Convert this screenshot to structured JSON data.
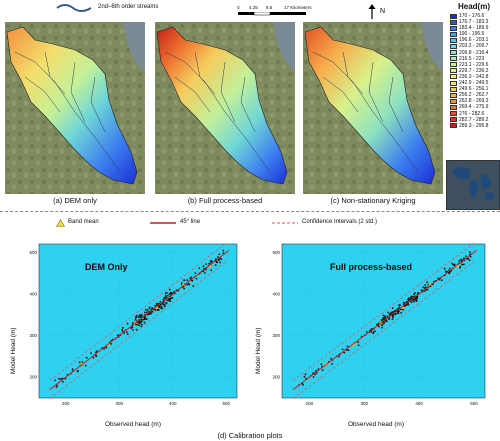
{
  "top": {
    "stream_legend": "2nd–6th order streams",
    "scale_bar": {
      "ticks": [
        "0",
        "4.25",
        "8.5",
        "17 Kilometers"
      ]
    },
    "north": "N",
    "legend": {
      "title": "Head(m)",
      "items": [
        {
          "label": "170 - 176.6",
          "color": "#1a2fd4"
        },
        {
          "label": "176.7 - 183.3",
          "color": "#2f52e3"
        },
        {
          "label": "183.4 - 189.9",
          "color": "#3c7ff0"
        },
        {
          "label": "190 - 196.5",
          "color": "#47a4f3"
        },
        {
          "label": "196.6 - 203.1",
          "color": "#55c3ec"
        },
        {
          "label": "203.2 - 209.7",
          "color": "#6fd6d7"
        },
        {
          "label": "209.8 - 216.4",
          "color": "#8de2c0"
        },
        {
          "label": "216.5 - 223",
          "color": "#a8ebab"
        },
        {
          "label": "223.1 - 229.6",
          "color": "#c2f199"
        },
        {
          "label": "229.7 - 236.2",
          "color": "#d8f28a"
        },
        {
          "label": "236.3 - 242.8",
          "color": "#e9ee7b"
        },
        {
          "label": "242.9 - 249.5",
          "color": "#f3df6c"
        },
        {
          "label": "249.6 - 256.1",
          "color": "#f6ca5b"
        },
        {
          "label": "256.2 - 262.7",
          "color": "#f6ae4b"
        },
        {
          "label": "262.8 - 269.3",
          "color": "#f28f3c"
        },
        {
          "label": "269.4 - 275.9",
          "color": "#ec6f30"
        },
        {
          "label": "276 - 282.6",
          "color": "#e25226"
        },
        {
          "label": "282.7 - 289.2",
          "color": "#d6361d"
        },
        {
          "label": "289.3 - 295.8",
          "color": "#c41e16"
        }
      ]
    },
    "maps": [
      {
        "caption": "(a) DEM only"
      },
      {
        "caption": "(b) Full process-based"
      },
      {
        "caption": "(c) Non-stationary Kriging"
      }
    ]
  },
  "bottom": {
    "legend": {
      "band_mean": "Band mean",
      "line_45": "45° line",
      "ci": "Confidence Intervals (2 std.)"
    },
    "caption": "(d) Calibration plots",
    "colors": {
      "plot_bg": "#2ed2f0",
      "points": "#111111",
      "line_45": "#cc1e1e",
      "ci": "#e0554f",
      "band_mean": "#e8d94a"
    },
    "plots": [
      {
        "title": "DEM Only",
        "xlabel": "Observed head  (m)",
        "ylabel": "Model Head (m)",
        "xticks": [
          "200",
          "300",
          "400",
          "500"
        ],
        "yticks": [
          "200",
          "300",
          "400",
          "500"
        ]
      },
      {
        "title": "Full process-based",
        "xlabel": "Observed head  (m)",
        "ylabel": "Model Head (m)",
        "xticks": [
          "200",
          "300",
          "400",
          "500"
        ],
        "yticks": [
          "200",
          "300",
          "400",
          "500"
        ]
      }
    ]
  }
}
